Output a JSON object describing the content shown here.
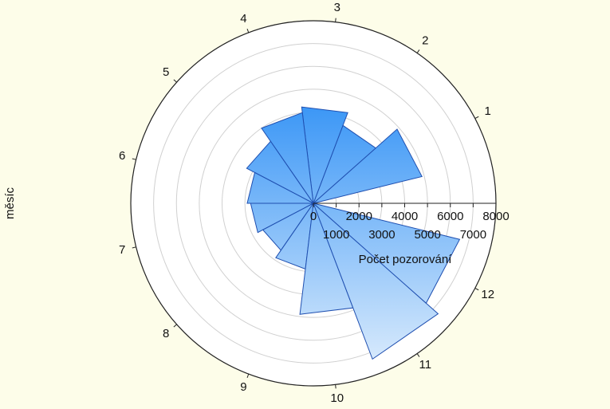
{
  "chart_data": {
    "type": "polar-bar",
    "y_label": "měsíc",
    "r_label": "Počet pozorování",
    "categories": [
      "1",
      "2",
      "3",
      "4",
      "5",
      "6",
      "7",
      "8",
      "9",
      "10",
      "11",
      "12"
    ],
    "values": [
      4900,
      3650,
      4250,
      4000,
      3300,
      2900,
      2750,
      2500,
      2900,
      4900,
      7300,
      6600
    ],
    "rlim": [
      0,
      8000
    ],
    "rticks": [
      0,
      1000,
      2000,
      3000,
      4000,
      5000,
      6000,
      7000,
      8000
    ],
    "color": "#3a96f6",
    "grid": true
  }
}
